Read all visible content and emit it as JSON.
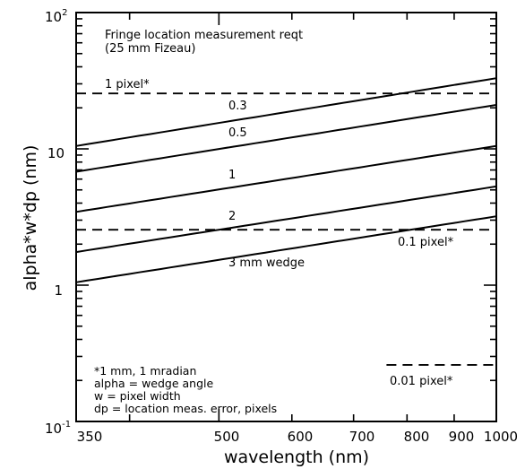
{
  "chart_data": {
    "type": "line",
    "xlabel": "wavelength (nm)",
    "ylabel": "alpha*w*dp (nm)",
    "xscale": "log",
    "yscale": "log",
    "xlim": [
      350,
      1000
    ],
    "ylim": [
      0.1,
      100
    ],
    "grid": false,
    "x_ticks": [
      "350",
      "500",
      "600",
      "700",
      "800",
      "900",
      "1000"
    ],
    "y_ticks": [
      {
        "base": "10",
        "exp": "2"
      },
      {
        "base": "10",
        "exp": ""
      },
      {
        "base": "1",
        "exp": ""
      },
      {
        "base": "10",
        "exp": "-1"
      }
    ],
    "header_lines": [
      "Fringe location measurement reqt",
      "(25 mm Fizeau)"
    ],
    "series": [
      {
        "name": "0.3",
        "x": [
          350,
          1000
        ],
        "y": [
          10.5,
          33
        ]
      },
      {
        "name": "0.5",
        "x": [
          350,
          1000
        ],
        "y": [
          6.8,
          21
        ]
      },
      {
        "name": "1",
        "x": [
          350,
          1000
        ],
        "y": [
          3.45,
          10.5
        ]
      },
      {
        "name": "2",
        "x": [
          350,
          1000
        ],
        "y": [
          1.75,
          5.3
        ]
      },
      {
        "name": "3 mm wedge",
        "x": [
          350,
          1000
        ],
        "y": [
          1.05,
          3.2
        ]
      }
    ],
    "reference_lines": [
      {
        "label": "1 pixel*",
        "y": 25.5,
        "x": [
          350,
          1000
        ]
      },
      {
        "label": "0.1 pixel*",
        "y": 2.55,
        "x": [
          350,
          1000
        ]
      },
      {
        "label": "0.01 pixel*",
        "y": 0.26,
        "x": [
          760,
          1000
        ]
      }
    ],
    "notes": [
      "*1 mm, 1 mradian",
      "alpha = wedge angle",
      "w = pixel width",
      "dp = location meas. error, pixels"
    ]
  }
}
